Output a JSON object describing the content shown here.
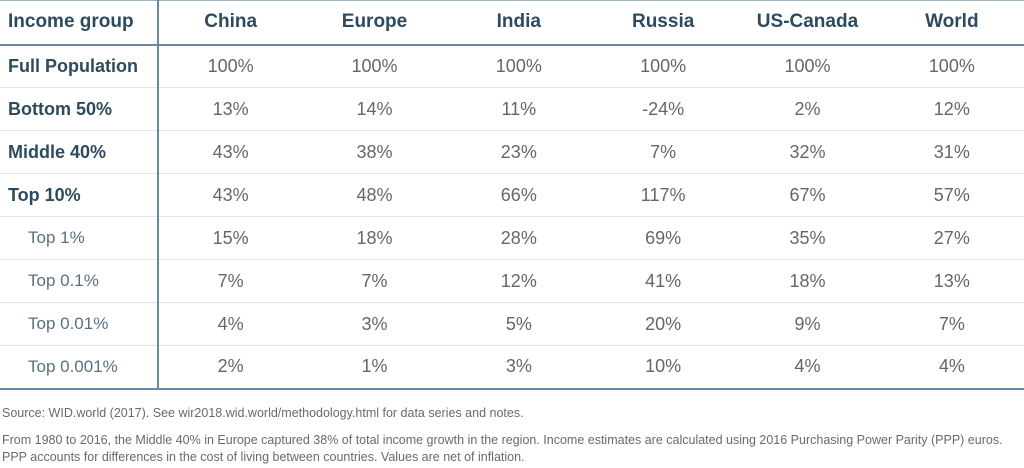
{
  "table": {
    "header": [
      "Income group",
      "China",
      "Europe",
      "India",
      "Russia",
      "US-Canada",
      "World"
    ],
    "rows": [
      [
        "Full Population",
        "100%",
        "100%",
        "100%",
        "100%",
        "100%",
        "100%"
      ],
      [
        "Bottom 50%",
        "13%",
        "14%",
        "11%",
        "-24%",
        "2%",
        "12%"
      ],
      [
        "Middle 40%",
        "43%",
        "38%",
        "23%",
        "7%",
        "32%",
        "31%"
      ],
      [
        "Top 10%",
        "43%",
        "48%",
        "66%",
        "117%",
        "67%",
        "57%"
      ],
      [
        "Top 1%",
        "15%",
        "18%",
        "28%",
        "69%",
        "35%",
        "27%"
      ],
      [
        "Top 0.1%",
        "7%",
        "7%",
        "12%",
        "41%",
        "18%",
        "13%"
      ],
      [
        "Top 0.01%",
        "4%",
        "3%",
        "5%",
        "20%",
        "9%",
        "7%"
      ],
      [
        "Top 0.001%",
        "2%",
        "1%",
        "3%",
        "10%",
        "4%",
        "4%"
      ]
    ]
  },
  "footer": {
    "source": "Source: WID.world (2017). See wir2018.wid.world/methodology.html for data series and notes.",
    "note": "From 1980 to 2016, the Middle 40% in Europe captured 38% of total income growth in the region. Income estimates are calculated using 2016 Purchasing Power Parity (PPP) euros. PPP accounts for differences in the cost of living between countries. Values are net of inflation."
  }
}
